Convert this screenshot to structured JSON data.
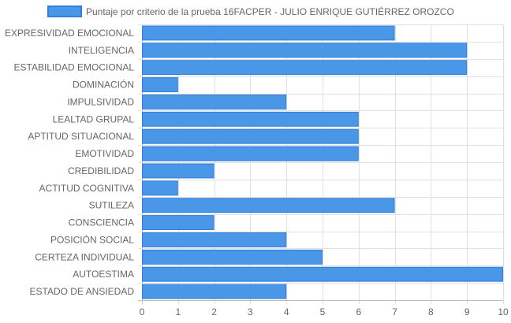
{
  "chart_data": {
    "type": "bar",
    "orientation": "horizontal",
    "categories": [
      "EXPRESIVIDAD EMOCIONAL",
      "INTELIGENCIA",
      "ESTABILIDAD EMOCIONAL",
      "DOMINACIÓN",
      "IMPULSIVIDAD",
      "LEALTAD GRUPAL",
      "APTITUD SITUACIONAL",
      "EMOTIVIDAD",
      "CREDIBILIDAD",
      "ACTITUD COGNITIVA",
      "SUTILEZA",
      "CONSCIENCIA",
      "POSICIÓN SOCIAL",
      "CERTEZA INDIVIDUAL",
      "AUTOESTIMA",
      "ESTADO DE ANSIEDAD"
    ],
    "series": [
      {
        "name": "Puntaje por criterio de la prueba 16FACPER - JULIO ENRIQUE GUTIÉRREZ OROZCO",
        "values": [
          7,
          9,
          9,
          1,
          4,
          6,
          6,
          6,
          2,
          1,
          7,
          2,
          4,
          5,
          10,
          4
        ]
      }
    ],
    "xlim": [
      0,
      10
    ],
    "xticks": [
      0,
      1,
      2,
      3,
      4,
      5,
      6,
      7,
      8,
      9,
      10
    ],
    "grid": true,
    "legend_position": "top",
    "colors": {
      "bar_fill": "#4a97e8",
      "bar_border": "#2f7fdc",
      "grid": "#e0e0e0",
      "axis_text": "#666666"
    }
  }
}
